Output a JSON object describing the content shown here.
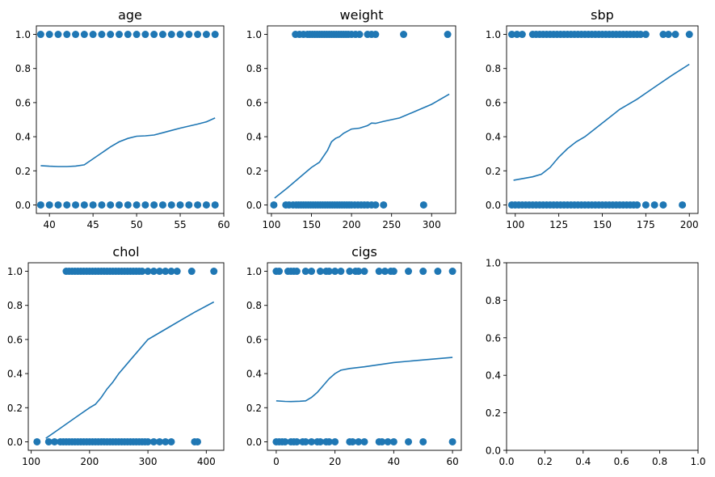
{
  "chart_data": [
    {
      "type": "scatter",
      "title": "age",
      "xlim": [
        38.5,
        60
      ],
      "ylim": [
        -0.05,
        1.05
      ],
      "xticks": [
        "40",
        "45",
        "50",
        "55",
        "60"
      ],
      "yticks": [
        "0.0",
        "0.2",
        "0.4",
        "0.6",
        "0.8",
        "1.0"
      ],
      "points": {
        "x_at_0": [
          39,
          40,
          41,
          42,
          43,
          44,
          45,
          46,
          47,
          48,
          49,
          50,
          51,
          52,
          53,
          54,
          55,
          56,
          57,
          58,
          59
        ],
        "x_at_1": [
          39,
          40,
          41,
          42,
          43,
          44,
          45,
          46,
          47,
          48,
          49,
          50,
          51,
          52,
          53,
          54,
          55,
          56,
          57,
          58,
          59
        ]
      },
      "curve": {
        "x": [
          39,
          40,
          41,
          42,
          43,
          44,
          45,
          46,
          47,
          48,
          49,
          50,
          51,
          52,
          53,
          54,
          55,
          56,
          57,
          58,
          59
        ],
        "y": [
          0.23,
          0.227,
          0.225,
          0.225,
          0.228,
          0.235,
          0.27,
          0.305,
          0.34,
          0.37,
          0.39,
          0.403,
          0.405,
          0.41,
          0.423,
          0.437,
          0.45,
          0.462,
          0.474,
          0.487,
          0.51
        ]
      }
    },
    {
      "type": "scatter",
      "title": "weight",
      "xlim": [
        95,
        330
      ],
      "ylim": [
        -0.05,
        1.05
      ],
      "xticks": [
        "100",
        "150",
        "200",
        "250",
        "300"
      ],
      "yticks": [
        "0.0",
        "0.2",
        "0.4",
        "0.6",
        "0.8",
        "1.0"
      ],
      "points": {
        "x_at_0": [
          103,
          118,
          122,
          127,
          131,
          134,
          137,
          140,
          143,
          146,
          149,
          152,
          155,
          158,
          161,
          164,
          167,
          170,
          173,
          176,
          179,
          182,
          185,
          188,
          191,
          194,
          197,
          200,
          204,
          208,
          212,
          216,
          220,
          225,
          230,
          240,
          290
        ],
        "x_at_1": [
          130,
          135,
          140,
          145,
          148,
          151,
          154,
          157,
          160,
          163,
          166,
          169,
          172,
          175,
          178,
          181,
          184,
          187,
          190,
          193,
          196,
          200,
          205,
          210,
          220,
          225,
          230,
          265,
          320
        ]
      },
      "curve": {
        "x": [
          104,
          120,
          140,
          150,
          160,
          170,
          175,
          180,
          185,
          190,
          200,
          210,
          220,
          225,
          230,
          240,
          260,
          280,
          300,
          322
        ],
        "y": [
          0.04,
          0.1,
          0.18,
          0.22,
          0.25,
          0.32,
          0.37,
          0.39,
          0.4,
          0.42,
          0.445,
          0.45,
          0.465,
          0.48,
          0.478,
          0.49,
          0.51,
          0.55,
          0.59,
          0.65
        ]
      }
    },
    {
      "type": "scatter",
      "title": "sbp",
      "xlim": [
        95,
        205
      ],
      "ylim": [
        -0.05,
        1.05
      ],
      "xticks": [
        "100",
        "125",
        "150",
        "175",
        "200"
      ],
      "yticks": [
        "0.0",
        "0.2",
        "0.4",
        "0.6",
        "0.8",
        "1.0"
      ],
      "points": {
        "x_at_0": [
          98,
          100,
          102,
          104,
          106,
          108,
          110,
          112,
          114,
          116,
          118,
          120,
          122,
          124,
          126,
          128,
          130,
          132,
          134,
          136,
          138,
          140,
          142,
          144,
          146,
          148,
          150,
          152,
          154,
          156,
          158,
          160,
          162,
          164,
          166,
          168,
          170,
          175,
          180,
          185,
          196
        ],
        "x_at_1": [
          98,
          101,
          104,
          110,
          112,
          114,
          116,
          118,
          120,
          122,
          124,
          126,
          128,
          130,
          132,
          134,
          136,
          138,
          140,
          142,
          144,
          146,
          148,
          150,
          152,
          154,
          156,
          158,
          160,
          162,
          164,
          166,
          168,
          170,
          172,
          175,
          185,
          188,
          192,
          200
        ]
      },
      "curve": {
        "x": [
          99,
          110,
          115,
          120,
          125,
          130,
          135,
          140,
          145,
          150,
          155,
          160,
          170,
          180,
          190,
          200
        ],
        "y": [
          0.145,
          0.165,
          0.18,
          0.22,
          0.28,
          0.33,
          0.37,
          0.4,
          0.44,
          0.48,
          0.52,
          0.56,
          0.62,
          0.69,
          0.76,
          0.825
        ]
      }
    },
    {
      "type": "scatter",
      "title": "chol",
      "xlim": [
        95,
        430
      ],
      "ylim": [
        -0.05,
        1.05
      ],
      "xticks": [
        "100",
        "200",
        "300",
        "400"
      ],
      "yticks": [
        "0.0",
        "0.2",
        "0.4",
        "0.6",
        "0.8",
        "1.0"
      ],
      "points": {
        "x_at_0": [
          110,
          130,
          140,
          150,
          155,
          160,
          165,
          170,
          175,
          180,
          185,
          190,
          195,
          200,
          205,
          210,
          215,
          220,
          225,
          230,
          235,
          240,
          245,
          250,
          255,
          260,
          265,
          270,
          275,
          280,
          285,
          290,
          295,
          300,
          310,
          320,
          330,
          340,
          380,
          385
        ],
        "x_at_1": [
          160,
          165,
          170,
          175,
          180,
          185,
          190,
          195,
          200,
          205,
          210,
          215,
          220,
          225,
          230,
          235,
          240,
          245,
          250,
          255,
          260,
          265,
          270,
          275,
          280,
          285,
          290,
          300,
          310,
          320,
          330,
          340,
          350,
          375,
          413
        ]
      },
      "curve": {
        "x": [
          125,
          150,
          175,
          200,
          210,
          220,
          230,
          240,
          250,
          260,
          270,
          280,
          300,
          320,
          340,
          360,
          380,
          413
        ],
        "y": [
          0.02,
          0.08,
          0.14,
          0.2,
          0.22,
          0.26,
          0.31,
          0.35,
          0.4,
          0.44,
          0.48,
          0.52,
          0.6,
          0.64,
          0.68,
          0.72,
          0.76,
          0.82
        ]
      }
    },
    {
      "type": "scatter",
      "title": "cigs",
      "xlim": [
        -3,
        63
      ],
      "ylim": [
        -0.05,
        1.05
      ],
      "xticks": [
        "0",
        "20",
        "40",
        "60"
      ],
      "yticks": [
        "0.0",
        "0.2",
        "0.4",
        "0.6",
        "0.8",
        "1.0"
      ],
      "points": {
        "x_at_0": [
          0,
          1,
          2,
          3,
          5,
          6,
          7,
          9,
          10,
          12,
          14,
          15,
          17,
          18,
          20,
          25,
          26,
          28,
          30,
          35,
          36,
          38,
          40,
          45,
          50,
          60
        ],
        "x_at_1": [
          0,
          1,
          4,
          5,
          6,
          7,
          10,
          12,
          15,
          17,
          18,
          20,
          22,
          25,
          27,
          28,
          30,
          35,
          37,
          39,
          40,
          45,
          50,
          55,
          60
        ]
      },
      "curve": {
        "x": [
          0,
          3,
          5,
          8,
          10,
          12,
          14,
          16,
          18,
          20,
          22,
          25,
          30,
          40,
          50,
          60
        ],
        "y": [
          0.24,
          0.237,
          0.236,
          0.238,
          0.24,
          0.26,
          0.29,
          0.33,
          0.37,
          0.4,
          0.42,
          0.43,
          0.44,
          0.465,
          0.48,
          0.495
        ]
      }
    },
    {
      "type": "scatter",
      "title": "",
      "xlim": [
        0,
        1
      ],
      "ylim": [
        0,
        1
      ],
      "xticks": [
        "0.0",
        "0.2",
        "0.4",
        "0.6",
        "0.8",
        "1.0"
      ],
      "yticks": [
        "0.0",
        "0.2",
        "0.4",
        "0.6",
        "0.8",
        "1.0"
      ],
      "points": {
        "x_at_0": [],
        "x_at_1": []
      },
      "curve": {
        "x": [],
        "y": []
      }
    }
  ],
  "style": {
    "series_color": "#1f77b4",
    "axis_color": "#000000"
  }
}
